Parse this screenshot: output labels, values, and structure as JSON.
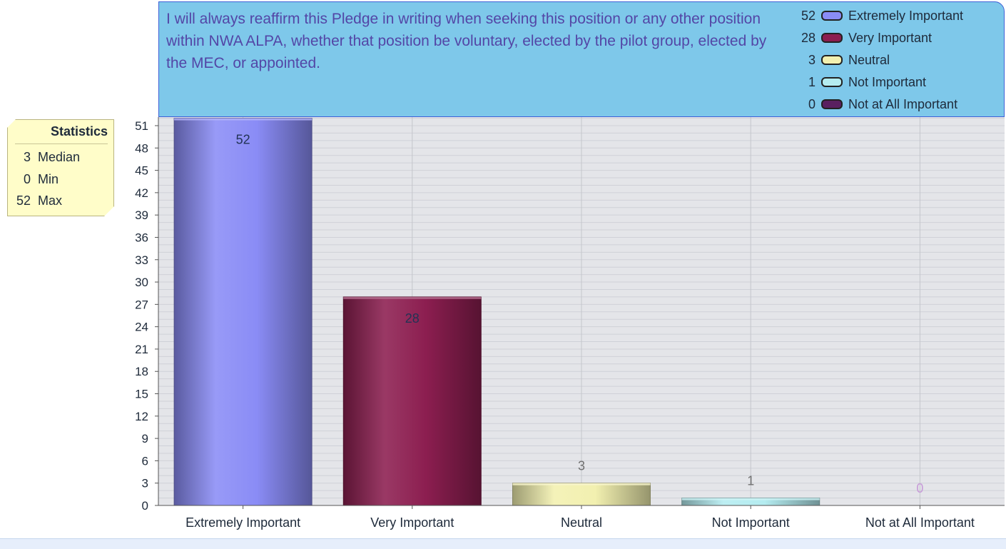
{
  "chart_data": {
    "type": "bar",
    "title": "I will always reaffirm this Pledge in writing when seeking this position or any other position within NWA ALPA, whether that position be voluntary, elected by the pilot group, elected by the MEC, or appointed.",
    "categories": [
      "Extremely Important",
      "Very Important",
      "Neutral",
      "Not Important",
      "Not at All Important"
    ],
    "values": [
      52,
      28,
      3,
      1,
      0
    ],
    "xlabel": "",
    "ylabel": "",
    "ylim": [
      0,
      51
    ],
    "yticks": [
      0,
      3,
      6,
      9,
      12,
      15,
      18,
      21,
      24,
      27,
      30,
      33,
      36,
      39,
      42,
      45,
      48,
      51
    ],
    "grid": true,
    "legend_position": "top-right",
    "colors": [
      "#8a8cf6",
      "#8c1e50",
      "#f2f0b0",
      "#b4ecf0",
      "#5a2060"
    ],
    "label_colors": [
      "#223355",
      "#223355",
      "#707070",
      "#707070",
      "#c79ad8"
    ],
    "legend": [
      {
        "value": "52",
        "label": "Extremely Important"
      },
      {
        "value": "28",
        "label": "Very Important"
      },
      {
        "value": "3",
        "label": "Neutral"
      },
      {
        "value": "1",
        "label": "Not Important"
      },
      {
        "value": "0",
        "label": "Not at All Important"
      }
    ]
  },
  "statistics": {
    "title": "Statistics",
    "rows": [
      {
        "value": "3",
        "label": "Median"
      },
      {
        "value": "0",
        "label": "Min"
      },
      {
        "value": "52",
        "label": "Max"
      }
    ]
  }
}
